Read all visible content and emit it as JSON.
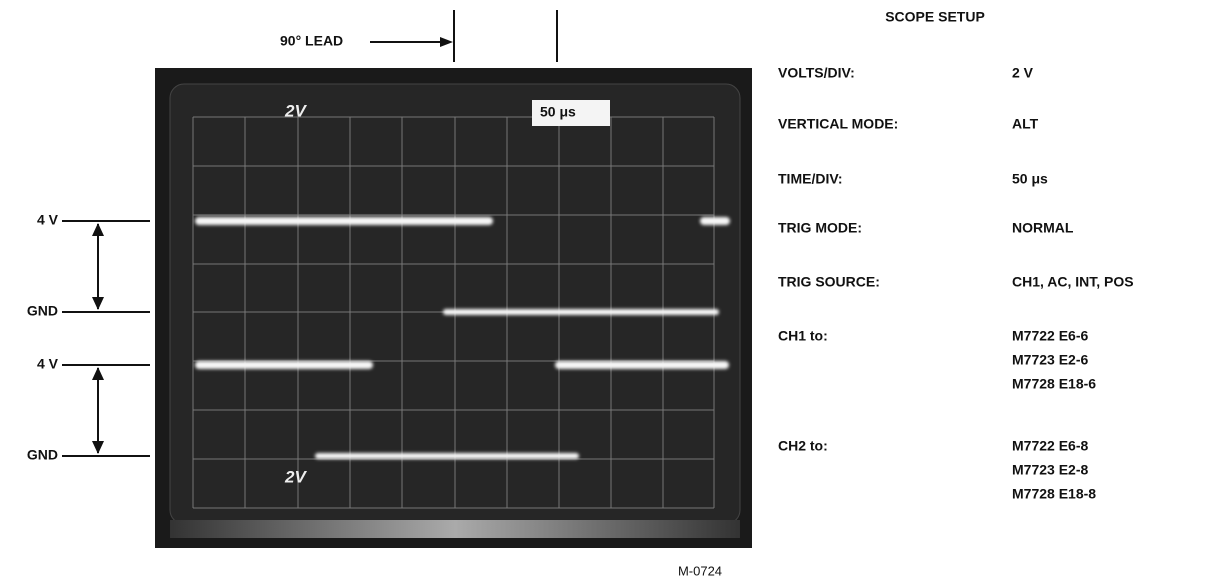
{
  "annotations": {
    "lead": "90° LEAD",
    "screen_volts_top": "2V",
    "screen_time": "50 μs",
    "screen_volts_bottom": "2V",
    "levels": [
      "4 V",
      "GND",
      "4 V",
      "GND"
    ]
  },
  "setup": {
    "title": "SCOPE SETUP",
    "rows": [
      {
        "label": "VOLTS/DIV:",
        "values": [
          "2 V"
        ]
      },
      {
        "label": "VERTICAL MODE:",
        "values": [
          "ALT"
        ]
      },
      {
        "label": "TIME/DIV:",
        "values": [
          "50 μs"
        ]
      },
      {
        "label": "TRIG MODE:",
        "values": [
          "NORMAL"
        ]
      },
      {
        "label": "TRIG SOURCE:",
        "values": [
          "CH1, AC, INT, POS"
        ]
      },
      {
        "label": "CH1 to:",
        "values": [
          "M7722 E6-6",
          "M7723 E2-6",
          "M7728 E18-6"
        ]
      },
      {
        "label": "CH2 to:",
        "values": [
          "M7722 E6-8",
          "M7723 E2-8",
          "M7728 E18-8"
        ]
      }
    ]
  },
  "figure_id": "M-0724"
}
